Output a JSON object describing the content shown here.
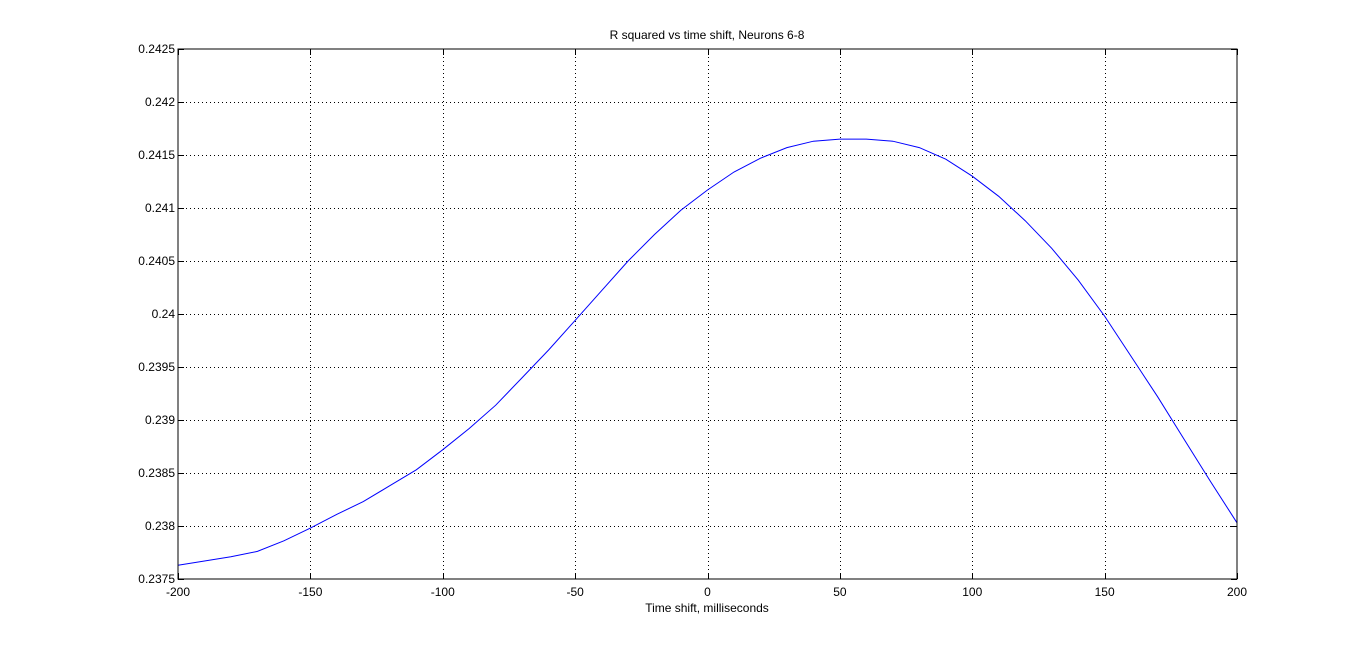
{
  "chart_data": {
    "type": "line",
    "title": "R squared vs time shift, Neurons 6-8",
    "xlabel": "Time shift, milliseconds",
    "ylabel": "",
    "xlim": [
      -200,
      200
    ],
    "ylim": [
      0.2375,
      0.2425
    ],
    "xticks": [
      -200,
      -150,
      -100,
      -50,
      0,
      50,
      100,
      150,
      200
    ],
    "xtick_labels": [
      "-200",
      "-150",
      "-100",
      "-50",
      "0",
      "50",
      "100",
      "150",
      "200"
    ],
    "yticks": [
      0.2375,
      0.238,
      0.2385,
      0.239,
      0.2395,
      0.24,
      0.2405,
      0.241,
      0.2415,
      0.242,
      0.2425
    ],
    "ytick_labels": [
      "0.2375",
      "0.238",
      "0.2385",
      "0.239",
      "0.2395",
      "0.24",
      "0.2405",
      "0.241",
      "0.2415",
      "0.242",
      "0.2425"
    ],
    "grid": true,
    "grid_style": "dotted",
    "line_color": "#0000ff",
    "series": [
      {
        "x": [
          -200,
          -190,
          -180,
          -170,
          -160,
          -150,
          -140,
          -130,
          -120,
          -110,
          -100,
          -90,
          -80,
          -70,
          -60,
          -50,
          -40,
          -30,
          -20,
          -10,
          0,
          10,
          20,
          30,
          40,
          50,
          60,
          70,
          80,
          90,
          100,
          110,
          120,
          130,
          140,
          150,
          160,
          170,
          180,
          190,
          200
        ],
        "y": [
          0.23763,
          0.23767,
          0.23771,
          0.23776,
          0.23786,
          0.23798,
          0.23811,
          0.23823,
          0.23838,
          0.23853,
          0.23872,
          0.23892,
          0.23914,
          0.2394,
          0.23966,
          0.23994,
          0.24022,
          0.2405,
          0.24075,
          0.24098,
          0.24117,
          0.24134,
          0.24147,
          0.24157,
          0.24163,
          0.24165,
          0.24165,
          0.24163,
          0.24157,
          0.24146,
          0.2413,
          0.24111,
          0.24088,
          0.24062,
          0.24032,
          0.23998,
          0.2396,
          0.23922,
          0.23882,
          0.23842,
          0.23803
        ]
      }
    ]
  }
}
